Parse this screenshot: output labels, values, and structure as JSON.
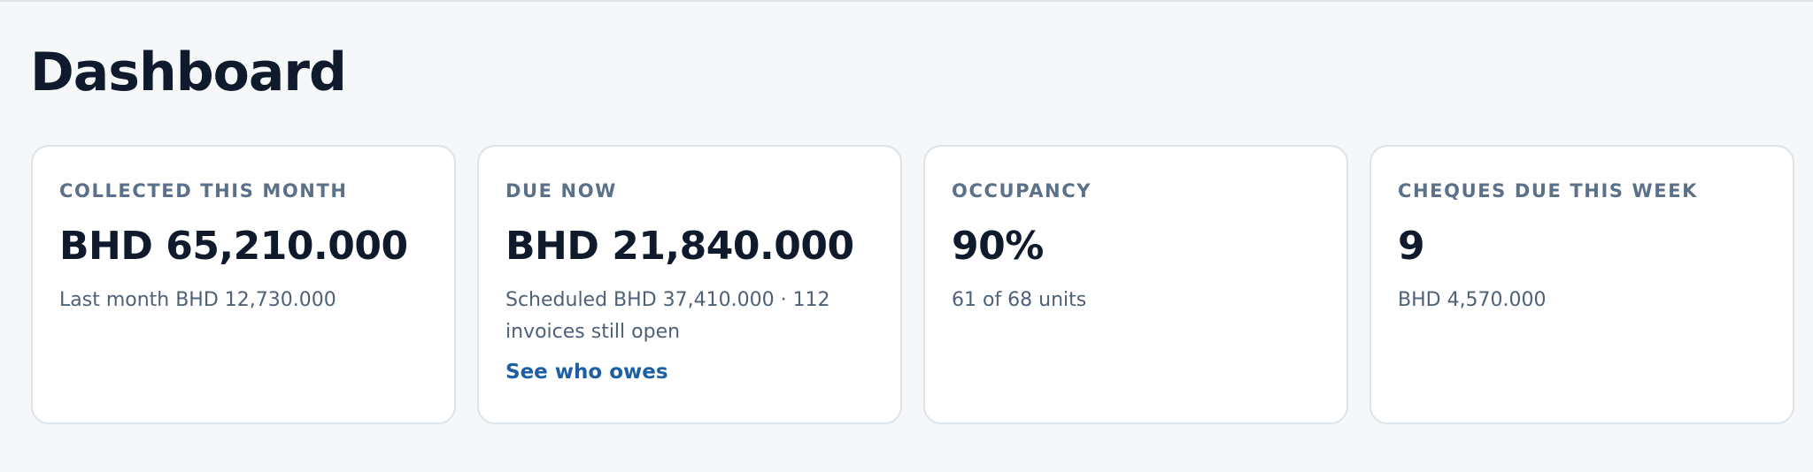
{
  "header": {
    "title": "Dashboard"
  },
  "cards": [
    {
      "label": "COLLECTED THIS MONTH",
      "value": "BHD 65,210.000",
      "sub": "Last month BHD 12,730.000"
    },
    {
      "label": "DUE NOW",
      "value": "BHD 21,840.000",
      "sub": "Scheduled BHD 37,410.000 · 112 invoices still open",
      "link": "See who owes"
    },
    {
      "label": "OCCUPANCY",
      "value": "90%",
      "sub": "61 of 68 units"
    },
    {
      "label": "CHEQUES DUE THIS WEEK",
      "value": "9",
      "sub": "BHD 4,570.000"
    }
  ],
  "colors": {
    "background": "#f5f7f9",
    "card_background": "#ffffff",
    "card_border": "#dde3ea",
    "label": "#5b7089",
    "value": "#0f1b2d",
    "subtext": "#4e6178",
    "link": "#1c5fa6"
  }
}
